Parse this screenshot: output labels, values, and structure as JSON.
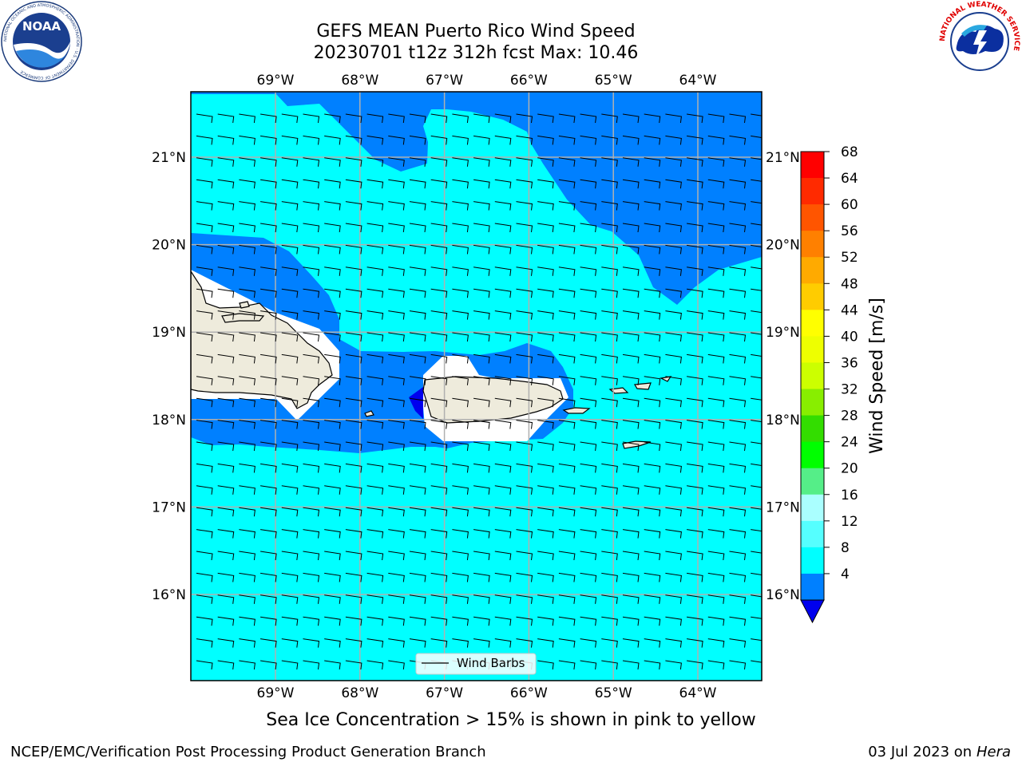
{
  "header": {
    "title_line1": "GEFS MEAN Puerto Rico Wind Speed",
    "title_line2": "20230701 t12z 312h fcst   Max: 10.46"
  },
  "map": {
    "lon_labels": [
      "69°W",
      "68°W",
      "67°W",
      "66°W",
      "65°W",
      "64°W"
    ],
    "lat_labels": [
      "21°N",
      "20°N",
      "19°N",
      "18°N",
      "17°N",
      "16°N"
    ],
    "legend_label": "Wind Barbs",
    "colors": {
      "ocean_8_12": "#00ffff",
      "ocean_4_8": "#0080ff",
      "ocean_below_4": "#0000ee",
      "land": "#eeebdc",
      "grid": "#b0b0b0"
    }
  },
  "colorbar": {
    "label": "Wind Speed [m/s]",
    "ticks": [
      "68",
      "64",
      "60",
      "56",
      "52",
      "48",
      "44",
      "40",
      "36",
      "32",
      "28",
      "24",
      "20",
      "16",
      "12",
      "8",
      "4"
    ],
    "colors_top_to_bottom": [
      "#ff0000",
      "#ff2a00",
      "#ff5500",
      "#ff8000",
      "#ffaa00",
      "#ffcc00",
      "#ffff00",
      "#eeff00",
      "#ccff00",
      "#88ee00",
      "#33dd00",
      "#00ff00",
      "#55ee88",
      "#aaffff",
      "#55ffff",
      "#00ffff",
      "#0080ff"
    ],
    "under_color": "#0000ee"
  },
  "caption": "Sea Ice Concentration > 15% is shown in pink to yellow",
  "footer": {
    "left": "NCEP/EMC/Verification Post Processing Product Generation Branch",
    "date": "03 Jul 2023 on ",
    "host": "Hera"
  },
  "logos": {
    "noaa_text": "NOAA",
    "noaa_ring": "NATIONAL OCEANIC AND ATMOSPHERIC ADMINISTRATION · U.S. DEPARTMENT OF COMMERCE",
    "nws_ring": "NATIONAL WEATHER SERVICE"
  }
}
